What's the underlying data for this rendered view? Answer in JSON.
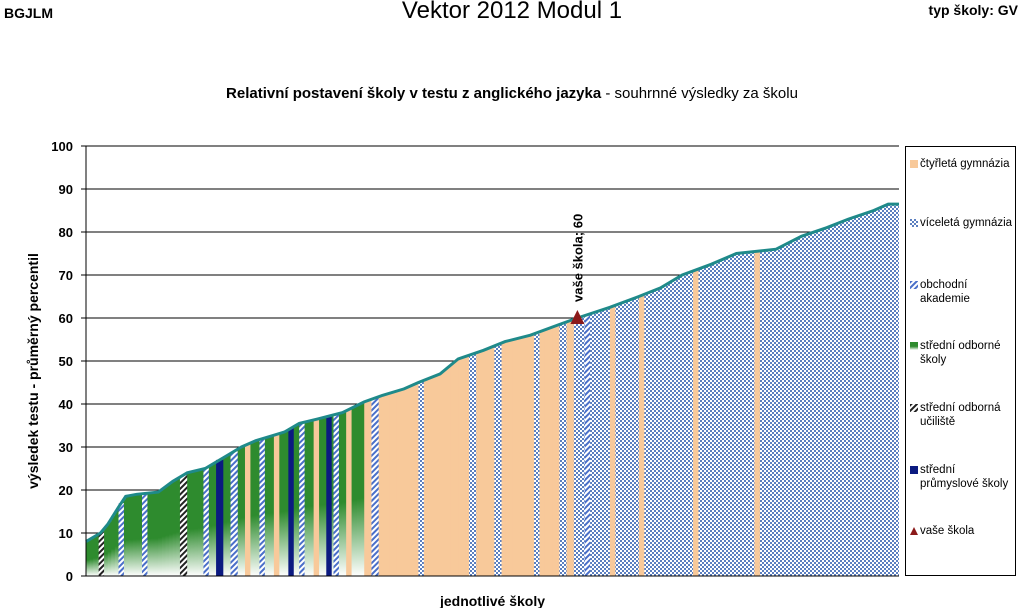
{
  "header": {
    "left": "BGJLM",
    "center": "Vektor 2012 Modul 1",
    "right": "typ školy: GV"
  },
  "chart_data": {
    "type": "bar",
    "title_bold": "Relativní postavení školy v testu z anglického jazyka",
    "title_rest": " - souhrnné výsledky za školu",
    "xlabel": "jednotlivé školy",
    "ylabel": "výsledek testu - průměrný percentil",
    "ylim": [
      0,
      100
    ],
    "yticks": [
      0,
      10,
      20,
      30,
      40,
      50,
      60,
      70,
      80,
      90,
      100
    ],
    "grid": true,
    "legend_position": "right",
    "curve_color": "#1f8a8a",
    "categories_meta": {
      "ctyrleta": {
        "label": "čtyřletá gymnázia",
        "color": "#f8c99a"
      },
      "viceleta": {
        "label": "víceletá gymnázia",
        "color": "#5b7fc0"
      },
      "obchodni": {
        "label": "obchodní akademie",
        "color": "#4a6fc9"
      },
      "sos": {
        "label": "střední odborné školy",
        "color": "#2e8b2e"
      },
      "sou": {
        "label": "střední odborná učiliště",
        "color": "#222222"
      },
      "prumyslove": {
        "label": "střední průmyslové školy",
        "color": "#0b1a80"
      },
      "vase": {
        "label": "vaše škola",
        "color": "#8B1A1A"
      }
    },
    "category_order": [
      "ctyrleta",
      "viceleta",
      "obchodni",
      "sos",
      "sou",
      "prumyslove",
      "vase"
    ],
    "curve": [
      [
        0,
        8
      ],
      [
        8,
        10
      ],
      [
        12,
        12
      ],
      [
        18,
        16
      ],
      [
        22,
        18.5
      ],
      [
        28,
        19
      ],
      [
        40,
        19.5
      ],
      [
        48,
        22
      ],
      [
        56,
        24
      ],
      [
        66,
        25
      ],
      [
        72,
        26.5
      ],
      [
        78,
        28
      ],
      [
        86,
        30
      ],
      [
        94,
        31.5
      ],
      [
        102,
        32.5
      ],
      [
        110,
        33.5
      ],
      [
        118,
        35.5
      ],
      [
        128,
        36.5
      ],
      [
        142,
        38
      ],
      [
        154,
        40.5
      ],
      [
        164,
        42
      ],
      [
        176,
        43.5
      ],
      [
        184,
        45
      ],
      [
        196,
        47
      ],
      [
        206,
        50.5
      ],
      [
        220,
        52.5
      ],
      [
        232,
        54.5
      ],
      [
        246,
        56
      ],
      [
        262,
        58.5
      ],
      [
        272,
        60
      ],
      [
        290,
        62.5
      ],
      [
        306,
        65
      ],
      [
        318,
        67
      ],
      [
        330,
        70
      ],
      [
        346,
        72.5
      ],
      [
        360,
        75
      ],
      [
        382,
        76
      ],
      [
        396,
        79
      ],
      [
        410,
        81
      ],
      [
        422,
        83
      ],
      [
        436,
        85
      ],
      [
        444,
        86.5
      ],
      [
        450,
        86.5
      ]
    ],
    "band_schools": [
      {
        "from": 0,
        "to": 66,
        "type": "sos"
      },
      {
        "from": 66,
        "to": 154,
        "type": "sos"
      },
      {
        "from": 154,
        "to": 262,
        "type": "ctyrleta"
      },
      {
        "from": 262,
        "to": 450,
        "type": "viceleta"
      }
    ],
    "highlight_bars": [
      {
        "x": 7,
        "w": 3,
        "type": "sou"
      },
      {
        "x": 18,
        "w": 3,
        "type": "obchodni"
      },
      {
        "x": 31,
        "w": 3,
        "type": "obchodni"
      },
      {
        "x": 52,
        "w": 4,
        "type": "sou"
      },
      {
        "x": 65,
        "w": 3,
        "type": "obchodni"
      },
      {
        "x": 72,
        "w": 4,
        "type": "prumyslove"
      },
      {
        "x": 80,
        "w": 4,
        "type": "obchodni"
      },
      {
        "x": 88,
        "w": 3,
        "type": "ctyrleta"
      },
      {
        "x": 96,
        "w": 3,
        "type": "obchodni"
      },
      {
        "x": 104,
        "w": 3,
        "type": "ctyrleta"
      },
      {
        "x": 112,
        "w": 3,
        "type": "prumyslove"
      },
      {
        "x": 118,
        "w": 3,
        "type": "obchodni"
      },
      {
        "x": 126,
        "w": 3,
        "type": "ctyrleta"
      },
      {
        "x": 133,
        "w": 3,
        "type": "prumyslove"
      },
      {
        "x": 137,
        "w": 3,
        "type": "obchodni"
      },
      {
        "x": 144,
        "w": 3,
        "type": "ctyrleta"
      },
      {
        "x": 158,
        "w": 4,
        "type": "obchodni"
      },
      {
        "x": 184,
        "w": 3,
        "type": "viceleta"
      },
      {
        "x": 212,
        "w": 4,
        "type": "viceleta"
      },
      {
        "x": 226,
        "w": 4,
        "type": "viceleta"
      },
      {
        "x": 248,
        "w": 3,
        "type": "viceleta"
      },
      {
        "x": 266,
        "w": 4,
        "type": "ctyrleta"
      },
      {
        "x": 276,
        "w": 3,
        "type": "obchodni"
      },
      {
        "x": 290,
        "w": 3,
        "type": "ctyrleta"
      },
      {
        "x": 306,
        "w": 3,
        "type": "ctyrleta"
      },
      {
        "x": 336,
        "w": 3,
        "type": "ctyrleta"
      },
      {
        "x": 370,
        "w": 3,
        "type": "ctyrleta"
      }
    ],
    "your_school": {
      "x": 272,
      "value": 60,
      "label": "vaše škola; 60"
    }
  }
}
